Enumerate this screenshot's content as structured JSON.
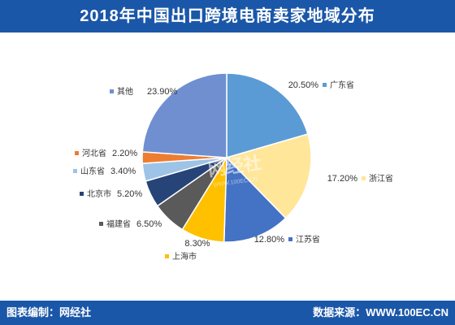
{
  "header": {
    "title": "2018年中国出口跨境电商卖家地域分布"
  },
  "watermark": {
    "logo_text": "网经社",
    "logo_sub": "WWW.100EC.CN",
    "color": "#ffffff"
  },
  "footer": {
    "source_left": "图表编制：网经社",
    "source_right": "数据来源：WWW.100EC.CN"
  },
  "colors": {
    "header_bg": "#1b57a8",
    "footer_bg": "#1b57a8"
  },
  "chart_data": {
    "type": "pie",
    "title": "",
    "start_angle_deg": 0,
    "direction": "clockwise",
    "slices": [
      {
        "name": "广东省",
        "value": 20.5,
        "label": "20.50%",
        "color": "#5b9bd5"
      },
      {
        "name": "浙江省",
        "value": 17.2,
        "label": "17.20%",
        "color": "#ffe699"
      },
      {
        "name": "江苏省",
        "value": 12.8,
        "label": "12.80%",
        "color": "#4472c4"
      },
      {
        "name": "上海市",
        "value": 8.3,
        "label": "8.30%",
        "color": "#ffc000"
      },
      {
        "name": "福建省",
        "value": 6.5,
        "label": "6.50%",
        "color": "#5a5a5a"
      },
      {
        "name": "北京市",
        "value": 5.2,
        "label": "5.20%",
        "color": "#264478"
      },
      {
        "name": "山东省",
        "value": 3.4,
        "label": "3.40%",
        "color": "#9dc3e6"
      },
      {
        "name": "河北省",
        "value": 2.2,
        "label": "2.20%",
        "color": "#ed7d31"
      },
      {
        "name": "其他",
        "value": 23.9,
        "label": "23.90%",
        "color": "#6f8fd0"
      }
    ]
  }
}
